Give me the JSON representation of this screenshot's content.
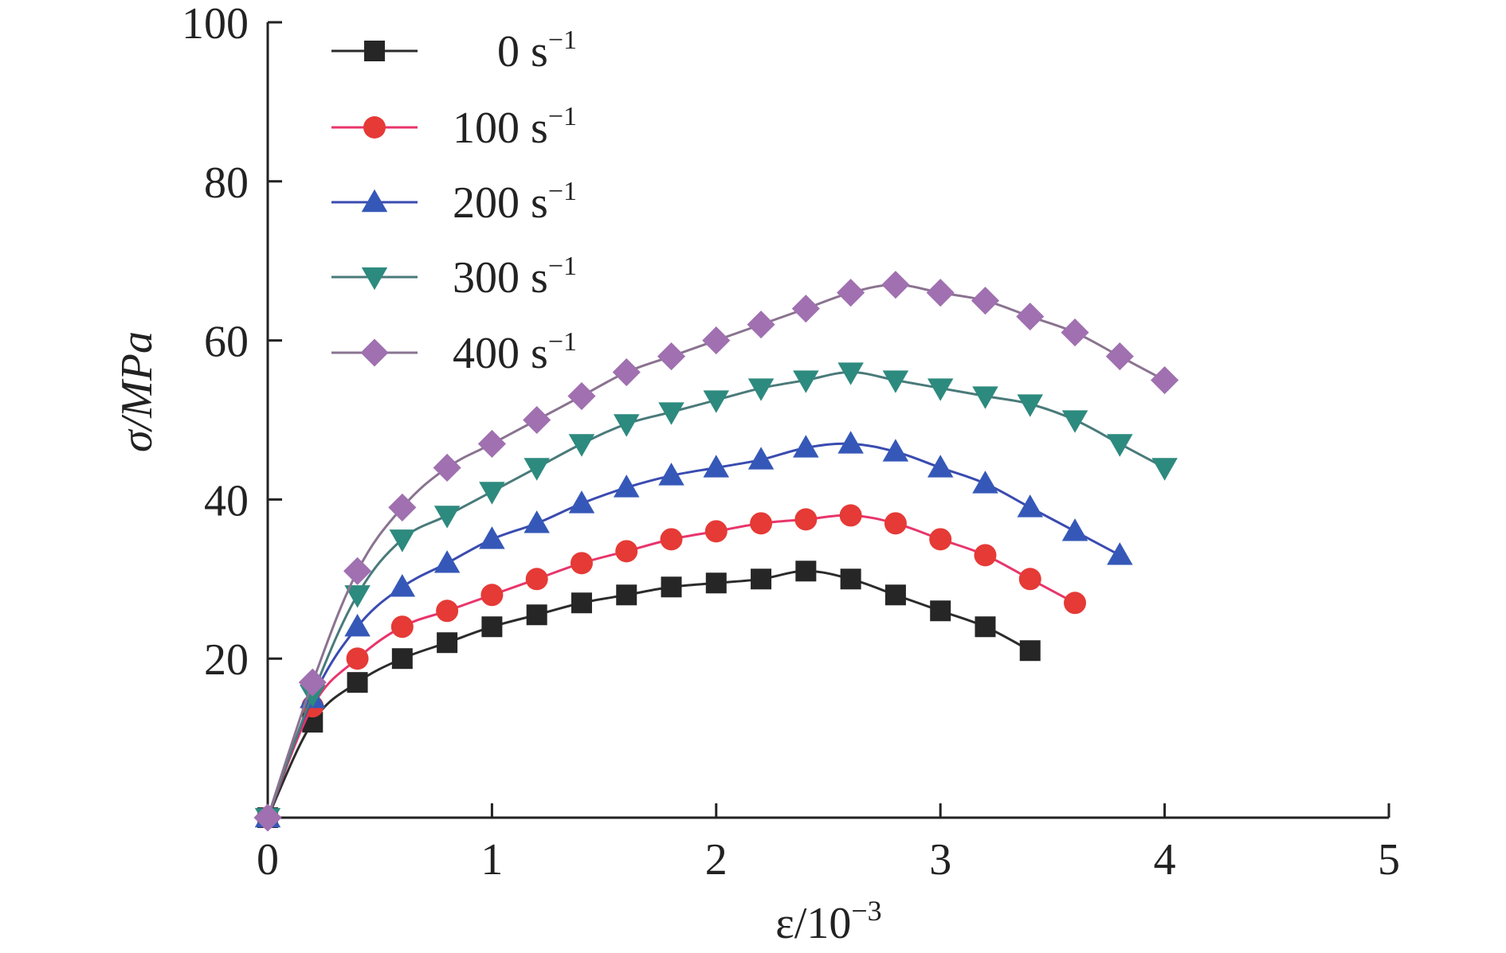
{
  "chart_data": {
    "type": "line",
    "xlabel": {
      "main": "ε/10",
      "sup": "−3"
    },
    "ylabel": "σ/MPa",
    "xlim": [
      0,
      5
    ],
    "ylim": [
      0,
      100
    ],
    "x_ticks": [
      0,
      1,
      2,
      3,
      4,
      5
    ],
    "y_ticks": [
      20,
      40,
      60,
      80,
      100
    ],
    "grid": false,
    "legend_position": "top-left",
    "series": [
      {
        "name": "0 s",
        "name_sup": "−1",
        "marker": "square",
        "color": "#2b2b2b",
        "marker_color": "#262626",
        "x": [
          0,
          0.2,
          0.4,
          0.6,
          0.8,
          1.0,
          1.2,
          1.4,
          1.6,
          1.8,
          2.0,
          2.2,
          2.4,
          2.6,
          2.8,
          3.0,
          3.2,
          3.4
        ],
        "y": [
          0,
          12,
          17,
          20,
          22,
          24,
          25.5,
          27,
          28,
          29,
          29.5,
          30,
          31,
          30,
          28,
          26,
          24,
          21
        ]
      },
      {
        "name": "100 s",
        "name_sup": "−1",
        "marker": "circle",
        "color": "#e8356b",
        "marker_color": "#e53a36",
        "x": [
          0,
          0.2,
          0.4,
          0.6,
          0.8,
          1.0,
          1.2,
          1.4,
          1.6,
          1.8,
          2.0,
          2.2,
          2.4,
          2.6,
          2.8,
          3.0,
          3.2,
          3.4,
          3.6
        ],
        "y": [
          0,
          14,
          20,
          24,
          26,
          28,
          30,
          32,
          33.5,
          35,
          36,
          37,
          37.5,
          38,
          37,
          35,
          33,
          30,
          27
        ]
      },
      {
        "name": "200 s",
        "name_sup": "−1",
        "marker": "triangle-up",
        "color": "#3a4bb0",
        "marker_color": "#3558b8",
        "x": [
          0,
          0.2,
          0.4,
          0.6,
          0.8,
          1.0,
          1.2,
          1.4,
          1.6,
          1.8,
          2.0,
          2.2,
          2.4,
          2.6,
          2.8,
          3.0,
          3.2,
          3.4,
          3.6,
          3.8
        ],
        "y": [
          0,
          15,
          24,
          29,
          32,
          35,
          37,
          39.5,
          41.5,
          43,
          44,
          45,
          46.5,
          47,
          46,
          44,
          42,
          39,
          36,
          33
        ]
      },
      {
        "name": "300 s",
        "name_sup": "−1",
        "marker": "triangle-down",
        "color": "#4a7a7a",
        "marker_color": "#2d8a7e",
        "x": [
          0,
          0.2,
          0.4,
          0.6,
          0.8,
          1.0,
          1.2,
          1.4,
          1.6,
          1.8,
          2.0,
          2.2,
          2.4,
          2.6,
          2.8,
          3.0,
          3.2,
          3.4,
          3.6,
          3.8,
          4.0
        ],
        "y": [
          0,
          15.5,
          28,
          35,
          38,
          41,
          44,
          47,
          49.5,
          51,
          52.5,
          54,
          55,
          56,
          55,
          54,
          53,
          52,
          50,
          47,
          44
        ]
      },
      {
        "name": "400 s",
        "name_sup": "−1",
        "marker": "diamond",
        "color": "#8a7390",
        "marker_color": "#a070b0",
        "x": [
          0,
          0.2,
          0.4,
          0.6,
          0.8,
          1.0,
          1.2,
          1.4,
          1.6,
          1.8,
          2.0,
          2.2,
          2.4,
          2.6,
          2.8,
          3.0,
          3.2,
          3.4,
          3.6,
          3.8,
          4.0
        ],
        "y": [
          0,
          17,
          31,
          39,
          44,
          47,
          50,
          53,
          56,
          58,
          60,
          62,
          64,
          66,
          67,
          66,
          65,
          63,
          61,
          58,
          55
        ]
      }
    ]
  }
}
